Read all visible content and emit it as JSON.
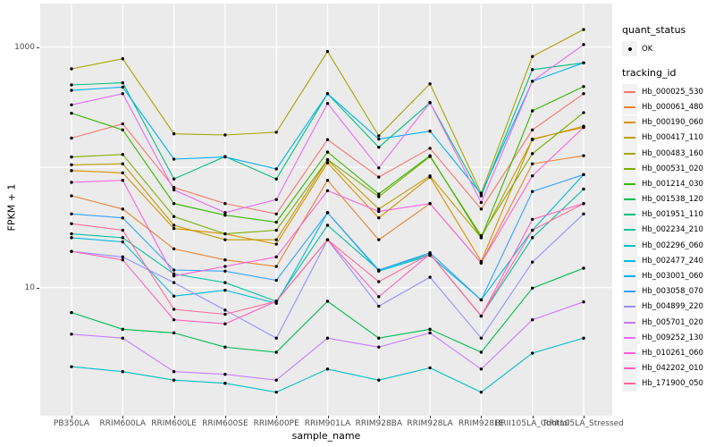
{
  "figure": {
    "y_axis": {
      "title": "FPKM + 1"
    },
    "x_axis": {
      "title": "sample_name"
    },
    "legend": {
      "quant_status_title": "quant_status",
      "quant_status_key": "OK",
      "tracking_title": "tracking_id"
    }
  },
  "chart_data": {
    "type": "line",
    "title": "",
    "xlabel": "sample_name",
    "ylabel": "FPKM + 1",
    "yscale": "log10",
    "ylim": [
      1,
      1600
    ],
    "grid": "on",
    "legend_position": "right",
    "panel_background": "#EBEBEB",
    "gridline_color": "#FFFFFF",
    "point_color": "#000000",
    "y_ticks": [
      {
        "label": "1000",
        "value": 1000
      },
      {
        "label": "10",
        "value": 10
      }
    ],
    "y_gridlines": [
      1000,
      100,
      10
    ],
    "x": [
      "PB350LA",
      "RRIM600LA",
      "RRIM600LE",
      "RRIM600SE",
      "RRIM600PE",
      "RRIM901LA",
      "RRIM928BA",
      "RRIM928LA",
      "RRIM928LE",
      "RRII105LA_Control",
      "RRII105LA_Stressed"
    ],
    "quant_status": "OK",
    "series": [
      {
        "name": "Hb_000025_530",
        "color": "#F8766D",
        "values": [
          175,
          230,
          68,
          50,
          41,
          170,
          83,
          144,
          45,
          205,
          410
        ]
      },
      {
        "name": "Hb_000061_480",
        "color": "#EA8331",
        "values": [
          58,
          45,
          21,
          17,
          15,
          78,
          25,
          50,
          16,
          107,
          125
        ]
      },
      {
        "name": "Hb_000190_060",
        "color": "#D89000",
        "values": [
          94,
          90,
          31,
          28,
          23,
          109,
          38,
          83,
          16.5,
          172,
          215
        ]
      },
      {
        "name": "Hb_000417_110",
        "color": "#C09B00",
        "values": [
          105,
          107,
          33,
          25,
          25,
          115,
          45,
          85,
          26,
          170,
          220
        ]
      },
      {
        "name": "Hb_000483_160",
        "color": "#A3A500",
        "values": [
          660,
          800,
          190,
          186,
          196,
          920,
          183,
          495,
          61,
          835,
          1400
        ]
      },
      {
        "name": "Hb_000531_020",
        "color": "#7CAE00",
        "values": [
          122,
          128,
          39,
          28,
          30,
          116,
          57,
          123,
          27,
          130,
          285
        ]
      },
      {
        "name": "Hb_001214_030",
        "color": "#39B600",
        "values": [
          282,
          205,
          50,
          40,
          35,
          134,
          60,
          125,
          26,
          295,
          470
        ]
      },
      {
        "name": "Hb_001538_120",
        "color": "#00BB4E",
        "values": [
          6.2,
          4.5,
          4.2,
          3.2,
          2.9,
          7.7,
          3.8,
          4.5,
          2.9,
          9.9,
          14.5
        ]
      },
      {
        "name": "Hb_001951_110",
        "color": "#00BF7D",
        "values": [
          485,
          505,
          80,
          123,
          80,
          410,
          147,
          345,
          58,
          650,
          740
        ]
      },
      {
        "name": "Hb_002234_210",
        "color": "#00C1A3",
        "values": [
          28,
          26,
          13,
          11,
          7.7,
          33,
          14,
          19,
          5.8,
          26,
          66
        ]
      },
      {
        "name": "Hb_002296_060",
        "color": "#00BFC4",
        "values": [
          2.2,
          2.0,
          1.7,
          1.6,
          1.35,
          2.1,
          1.7,
          2.15,
          1.35,
          2.85,
          3.8
        ]
      },
      {
        "name": "Hb_002477_240",
        "color": "#00BBDB",
        "values": [
          26,
          24,
          8.5,
          9.5,
          7.4,
          42,
          13.7,
          18.5,
          7.9,
          30,
          87
        ]
      },
      {
        "name": "Hb_003001_060",
        "color": "#00B0F6",
        "values": [
          437,
          465,
          117,
          122,
          97,
          410,
          172,
          200,
          60,
          520,
          740
        ]
      },
      {
        "name": "Hb_003058_070",
        "color": "#35A2FF",
        "values": [
          41,
          38,
          14,
          13.7,
          11.5,
          42,
          14,
          19.5,
          7.9,
          63,
          87
        ]
      },
      {
        "name": "Hb_004899_220",
        "color": "#9590FF",
        "values": [
          20,
          18,
          11,
          6.5,
          3.8,
          25,
          7.0,
          12.2,
          3.8,
          16.3,
          41
        ]
      },
      {
        "name": "Hb_005701_020",
        "color": "#C77CFF",
        "values": [
          4.1,
          3.8,
          2.0,
          1.9,
          1.7,
          3.8,
          3.2,
          4.2,
          2.1,
          5.4,
          7.6
        ]
      },
      {
        "name": "Hb_009252_130",
        "color": "#E76BF3",
        "values": [
          331,
          410,
          65,
          42,
          54,
          340,
          99,
          345,
          51,
          520,
          1050
        ]
      },
      {
        "name": "Hb_010261_060",
        "color": "#FA62DB",
        "values": [
          75,
          78,
          12.5,
          15,
          18,
          64,
          43,
          50,
          16,
          85,
          215
        ]
      },
      {
        "name": "Hb_042202_010",
        "color": "#FF62BC",
        "values": [
          20,
          17,
          5.4,
          5.0,
          7.7,
          25,
          8.4,
          19,
          5.8,
          37,
          50
        ]
      },
      {
        "name": "Hb_171900_050",
        "color": "#FF6A98",
        "values": [
          34,
          30,
          6.6,
          6.0,
          7.7,
          25,
          11.2,
          19,
          5.8,
          30,
          50
        ]
      }
    ]
  }
}
